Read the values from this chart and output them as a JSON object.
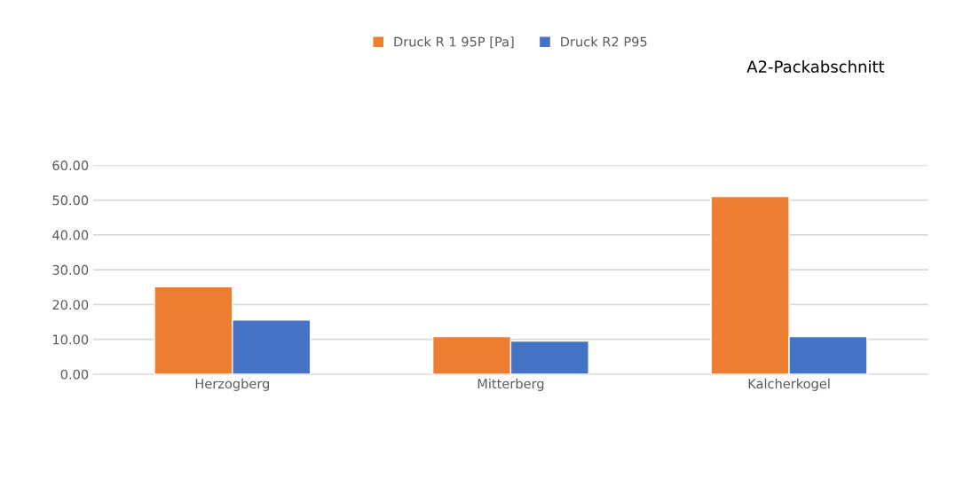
{
  "chart_data": {
    "type": "bar",
    "title": "A2-Packabschnitt",
    "categories": [
      "Herzogberg",
      "Mitterberg",
      "Kalcherkogel"
    ],
    "series": [
      {
        "name": "Druck R 1 95P [Pa]",
        "color": "#ed7d31",
        "values": [
          25.1,
          10.8,
          51.0
        ]
      },
      {
        "name": "Druck R2 P95",
        "color": "#4472c4",
        "values": [
          15.6,
          9.5,
          10.8
        ]
      }
    ],
    "ylim": [
      0,
      60
    ],
    "yticks": [
      {
        "value": 0,
        "label": "0.00"
      },
      {
        "value": 10,
        "label": "10.00"
      },
      {
        "value": 20,
        "label": "20.00"
      },
      {
        "value": 30,
        "label": "30.00"
      },
      {
        "value": 40,
        "label": "40.00"
      },
      {
        "value": 50,
        "label": "50.00"
      },
      {
        "value": 60,
        "label": "60.00"
      }
    ],
    "grid": "y",
    "legend": "top"
  }
}
